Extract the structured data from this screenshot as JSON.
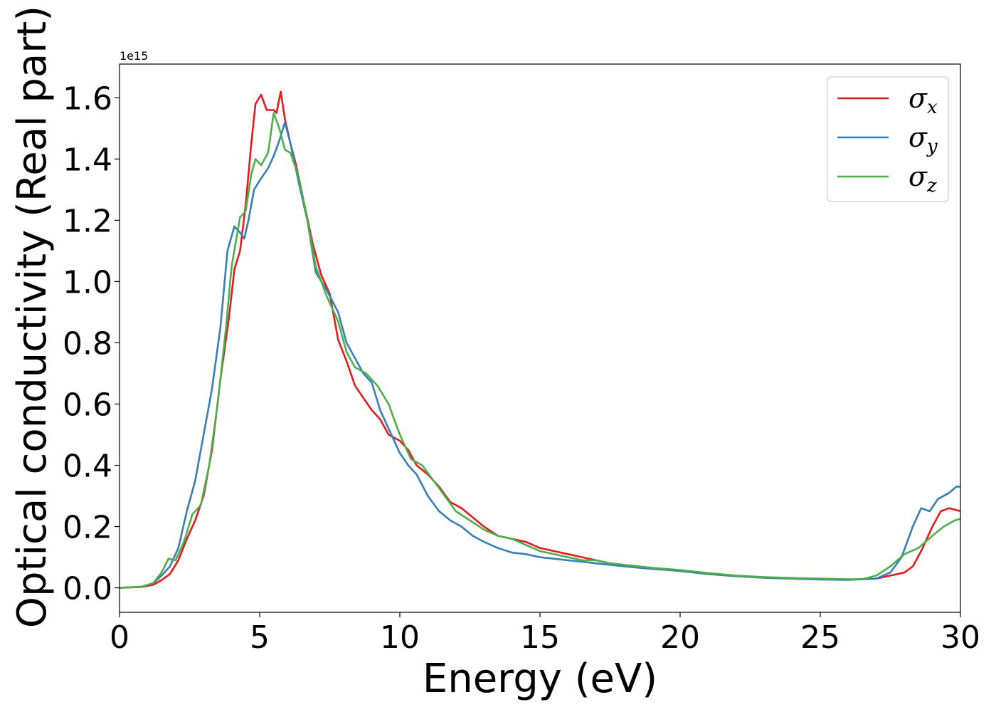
{
  "chart_data": {
    "type": "line",
    "xlabel": "Energy (eV)",
    "ylabel": "Optical conductivity (Real part)",
    "y_offset_text": "1e15",
    "xlim": [
      0,
      30
    ],
    "ylim": [
      -0.08,
      1.71
    ],
    "x_ticks": [
      0,
      5,
      10,
      15,
      20,
      25,
      30
    ],
    "x_tick_labels": [
      "0",
      "5",
      "10",
      "15",
      "20",
      "25",
      "30"
    ],
    "y_ticks": [
      0.0,
      0.2,
      0.4,
      0.6,
      0.8,
      1.0,
      1.2,
      1.4,
      1.6
    ],
    "y_tick_labels": [
      "0.0",
      "0.2",
      "0.4",
      "0.6",
      "0.8",
      "1.0",
      "1.2",
      "1.4",
      "1.6"
    ],
    "grid": false,
    "legend_position": "top-right",
    "series": [
      {
        "name": "σx",
        "legend_base": "σ",
        "legend_sub": "x",
        "color": "#e41a1c",
        "points": [
          [
            0,
            0
          ],
          [
            0.8,
            0.003
          ],
          [
            1.2,
            0.01
          ],
          [
            1.5,
            0.025
          ],
          [
            1.8,
            0.045
          ],
          [
            2.1,
            0.09
          ],
          [
            2.4,
            0.16
          ],
          [
            2.7,
            0.22
          ],
          [
            3.0,
            0.3
          ],
          [
            3.3,
            0.45
          ],
          [
            3.6,
            0.68
          ],
          [
            3.9,
            0.88
          ],
          [
            4.1,
            1.04
          ],
          [
            4.3,
            1.1
          ],
          [
            4.5,
            1.25
          ],
          [
            4.7,
            1.45
          ],
          [
            4.85,
            1.58
          ],
          [
            5.05,
            1.61
          ],
          [
            5.25,
            1.56
          ],
          [
            5.5,
            1.56
          ],
          [
            5.6,
            1.55
          ],
          [
            5.75,
            1.62
          ],
          [
            5.9,
            1.53
          ],
          [
            6.1,
            1.45
          ],
          [
            6.3,
            1.38
          ],
          [
            6.6,
            1.25
          ],
          [
            6.9,
            1.12
          ],
          [
            7.2,
            1.02
          ],
          [
            7.5,
            0.96
          ],
          [
            7.8,
            0.81
          ],
          [
            8.1,
            0.74
          ],
          [
            8.4,
            0.66
          ],
          [
            8.7,
            0.62
          ],
          [
            9.0,
            0.58
          ],
          [
            9.3,
            0.55
          ],
          [
            9.6,
            0.5
          ],
          [
            10.0,
            0.48
          ],
          [
            10.3,
            0.45
          ],
          [
            10.6,
            0.4
          ],
          [
            11.0,
            0.37
          ],
          [
            11.4,
            0.33
          ],
          [
            11.8,
            0.28
          ],
          [
            12.2,
            0.26
          ],
          [
            12.6,
            0.23
          ],
          [
            13.0,
            0.2
          ],
          [
            13.5,
            0.17
          ],
          [
            14.0,
            0.16
          ],
          [
            14.5,
            0.15
          ],
          [
            15.0,
            0.13
          ],
          [
            15.5,
            0.12
          ],
          [
            16.0,
            0.11
          ],
          [
            16.5,
            0.1
          ],
          [
            17.0,
            0.09
          ],
          [
            17.5,
            0.08
          ],
          [
            18.0,
            0.075
          ],
          [
            19.0,
            0.065
          ],
          [
            20.0,
            0.055
          ],
          [
            21.0,
            0.045
          ],
          [
            22.0,
            0.038
          ],
          [
            23.0,
            0.033
          ],
          [
            24.0,
            0.03
          ],
          [
            25.0,
            0.028
          ],
          [
            26.0,
            0.027
          ],
          [
            27.0,
            0.03
          ],
          [
            27.5,
            0.04
          ],
          [
            28.0,
            0.05
          ],
          [
            28.3,
            0.07
          ],
          [
            28.6,
            0.12
          ],
          [
            29.0,
            0.2
          ],
          [
            29.3,
            0.25
          ],
          [
            29.6,
            0.26
          ],
          [
            30.0,
            0.25
          ]
        ]
      },
      {
        "name": "σy",
        "legend_base": "σ",
        "legend_sub": "y",
        "color": "#377eb8",
        "points": [
          [
            0,
            0
          ],
          [
            0.8,
            0.004
          ],
          [
            1.2,
            0.015
          ],
          [
            1.5,
            0.04
          ],
          [
            1.8,
            0.07
          ],
          [
            2.1,
            0.13
          ],
          [
            2.4,
            0.25
          ],
          [
            2.7,
            0.35
          ],
          [
            3.0,
            0.5
          ],
          [
            3.3,
            0.65
          ],
          [
            3.6,
            0.85
          ],
          [
            3.85,
            1.1
          ],
          [
            4.1,
            1.18
          ],
          [
            4.3,
            1.16
          ],
          [
            4.45,
            1.14
          ],
          [
            4.6,
            1.2
          ],
          [
            4.8,
            1.3
          ],
          [
            5.0,
            1.33
          ],
          [
            5.3,
            1.37
          ],
          [
            5.5,
            1.41
          ],
          [
            5.7,
            1.46
          ],
          [
            5.9,
            1.52
          ],
          [
            6.1,
            1.45
          ],
          [
            6.4,
            1.32
          ],
          [
            6.7,
            1.2
          ],
          [
            7.0,
            1.03
          ],
          [
            7.4,
            0.97
          ],
          [
            7.8,
            0.9
          ],
          [
            8.1,
            0.8
          ],
          [
            8.4,
            0.75
          ],
          [
            8.7,
            0.7
          ],
          [
            9.0,
            0.67
          ],
          [
            9.3,
            0.58
          ],
          [
            9.6,
            0.52
          ],
          [
            10.0,
            0.44
          ],
          [
            10.3,
            0.4
          ],
          [
            10.6,
            0.37
          ],
          [
            11.0,
            0.3
          ],
          [
            11.4,
            0.25
          ],
          [
            11.8,
            0.22
          ],
          [
            12.2,
            0.2
          ],
          [
            12.6,
            0.17
          ],
          [
            13.0,
            0.15
          ],
          [
            13.5,
            0.13
          ],
          [
            14.0,
            0.115
          ],
          [
            14.5,
            0.11
          ],
          [
            15.0,
            0.1
          ],
          [
            15.5,
            0.095
          ],
          [
            16.0,
            0.09
          ],
          [
            16.5,
            0.085
          ],
          [
            17.0,
            0.08
          ],
          [
            17.5,
            0.075
          ],
          [
            18.0,
            0.07
          ],
          [
            19.0,
            0.062
          ],
          [
            20.0,
            0.055
          ],
          [
            21.0,
            0.045
          ],
          [
            22.0,
            0.038
          ],
          [
            23.0,
            0.033
          ],
          [
            24.0,
            0.03
          ],
          [
            25.0,
            0.027
          ],
          [
            26.0,
            0.026
          ],
          [
            27.0,
            0.03
          ],
          [
            27.5,
            0.05
          ],
          [
            27.9,
            0.1
          ],
          [
            28.3,
            0.2
          ],
          [
            28.6,
            0.26
          ],
          [
            28.9,
            0.25
          ],
          [
            29.2,
            0.29
          ],
          [
            29.6,
            0.31
          ],
          [
            29.85,
            0.33
          ],
          [
            30.0,
            0.33
          ]
        ]
      },
      {
        "name": "σz",
        "legend_base": "σ",
        "legend_sub": "z",
        "color": "#4daf4a",
        "points": [
          [
            0,
            0
          ],
          [
            0.8,
            0.004
          ],
          [
            1.2,
            0.015
          ],
          [
            1.5,
            0.05
          ],
          [
            1.75,
            0.095
          ],
          [
            2.0,
            0.09
          ],
          [
            2.3,
            0.15
          ],
          [
            2.6,
            0.24
          ],
          [
            2.9,
            0.27
          ],
          [
            3.2,
            0.4
          ],
          [
            3.5,
            0.6
          ],
          [
            3.8,
            0.85
          ],
          [
            4.0,
            1.05
          ],
          [
            4.3,
            1.21
          ],
          [
            4.5,
            1.23
          ],
          [
            4.7,
            1.35
          ],
          [
            4.85,
            1.4
          ],
          [
            5.05,
            1.38
          ],
          [
            5.3,
            1.42
          ],
          [
            5.5,
            1.55
          ],
          [
            5.7,
            1.5
          ],
          [
            5.9,
            1.43
          ],
          [
            6.1,
            1.42
          ],
          [
            6.4,
            1.34
          ],
          [
            6.7,
            1.2
          ],
          [
            7.0,
            1.05
          ],
          [
            7.4,
            0.95
          ],
          [
            7.8,
            0.87
          ],
          [
            8.1,
            0.77
          ],
          [
            8.4,
            0.72
          ],
          [
            8.8,
            0.7
          ],
          [
            9.2,
            0.66
          ],
          [
            9.6,
            0.6
          ],
          [
            10.0,
            0.5
          ],
          [
            10.4,
            0.42
          ],
          [
            10.8,
            0.4
          ],
          [
            11.2,
            0.35
          ],
          [
            11.6,
            0.3
          ],
          [
            12.0,
            0.25
          ],
          [
            12.5,
            0.22
          ],
          [
            13.0,
            0.19
          ],
          [
            13.5,
            0.17
          ],
          [
            14.0,
            0.16
          ],
          [
            14.5,
            0.14
          ],
          [
            15.0,
            0.12
          ],
          [
            15.5,
            0.11
          ],
          [
            16.0,
            0.1
          ],
          [
            16.5,
            0.09
          ],
          [
            17.0,
            0.09
          ],
          [
            17.5,
            0.08
          ],
          [
            18.0,
            0.075
          ],
          [
            19.0,
            0.065
          ],
          [
            20.0,
            0.058
          ],
          [
            21.0,
            0.048
          ],
          [
            22.0,
            0.04
          ],
          [
            23.0,
            0.035
          ],
          [
            24.0,
            0.032
          ],
          [
            25.0,
            0.03
          ],
          [
            26.0,
            0.028
          ],
          [
            26.5,
            0.028
          ],
          [
            27.0,
            0.04
          ],
          [
            27.5,
            0.07
          ],
          [
            28.0,
            0.11
          ],
          [
            28.5,
            0.13
          ],
          [
            29.0,
            0.17
          ],
          [
            29.4,
            0.2
          ],
          [
            29.8,
            0.22
          ],
          [
            30.0,
            0.225
          ]
        ]
      }
    ]
  }
}
